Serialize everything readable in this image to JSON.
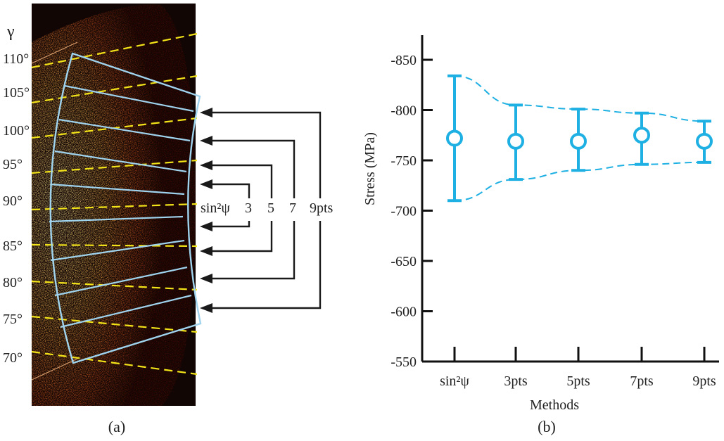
{
  "panel_a": {
    "gamma_symbol": "γ",
    "angle_labels": [
      "110°",
      "105°",
      "100°",
      "95°",
      "90°",
      "85°",
      "80°",
      "75°",
      "70°"
    ],
    "method_labels": [
      "sin²ψ",
      "3",
      "5",
      "7",
      "9pts"
    ],
    "caption": "(a)",
    "colors": {
      "background": "#120604",
      "ring": "#e9a04a",
      "box": "#9fd3ee",
      "dashed": "#f2e419",
      "arrows": "#1a1a1a"
    }
  },
  "panel_b": {
    "caption": "(b)"
  },
  "chart_data": {
    "type": "scatter",
    "title": "",
    "xlabel": "Methods",
    "ylabel": "Stress (MPa)",
    "categories": [
      "sin²ψ",
      "3pts",
      "5pts",
      "7pts",
      "9pts"
    ],
    "yticks": [
      "-850",
      "-800",
      "-750",
      "-700",
      "-650",
      "-600",
      "-550"
    ],
    "ylim": [
      -550,
      -850
    ],
    "y_inverted": true,
    "values": [
      -772,
      -769,
      -769,
      -775,
      -769
    ],
    "error_low": [
      -710,
      -731,
      -740,
      -746,
      -748
    ],
    "error_high": [
      -834,
      -805,
      -801,
      -797,
      -789
    ],
    "envelope": "dashed",
    "grid": false,
    "series_color": "#1fb0e3"
  }
}
